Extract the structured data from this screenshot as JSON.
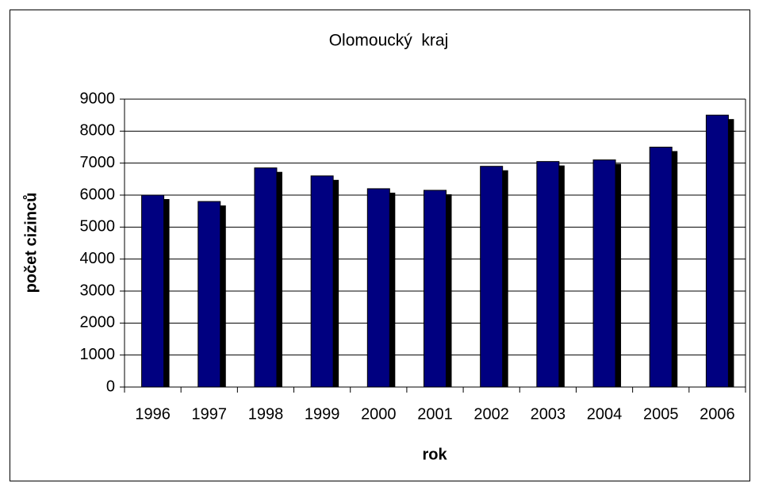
{
  "chart_data": {
    "type": "bar",
    "title": "Olomoucký  kraj",
    "x_label": "rok",
    "y_label": "počet cizinců",
    "categories": [
      "1996",
      "1997",
      "1998",
      "1999",
      "2000",
      "2001",
      "2002",
      "2003",
      "2004",
      "2005",
      "2006"
    ],
    "values": [
      6000,
      5800,
      6850,
      6600,
      6200,
      6150,
      6900,
      7050,
      7100,
      7500,
      8500
    ],
    "color": "#000080",
    "shadow_color": "#000000",
    "ylim": [
      0,
      9000
    ],
    "yticks": [
      0,
      1000,
      2000,
      3000,
      4000,
      5000,
      6000,
      7000,
      8000,
      9000
    ],
    "grid": true
  }
}
